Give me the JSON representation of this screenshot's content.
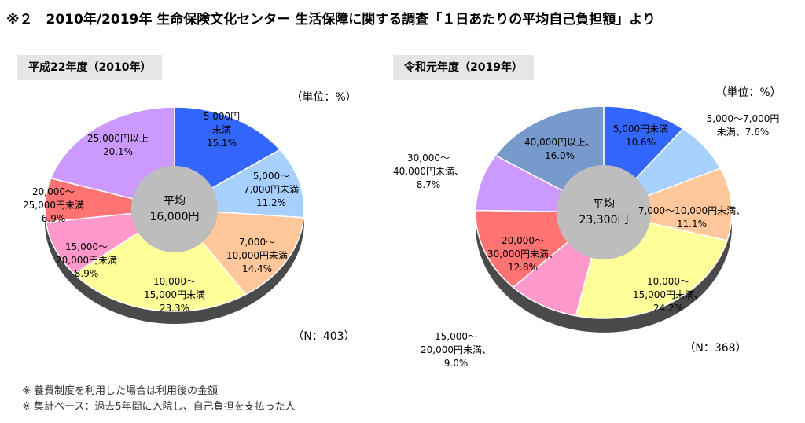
{
  "title": "※２　2010年/2019年 生命保険文化センター 生活保障に関する調査「１日あたりの平均自己負担額」より",
  "colors": {
    "blue": "#3366ff",
    "lightblue": "#a8d0ff",
    "peach": "#ffc79a",
    "yellow": "#ffff99",
    "pink": "#ff99cc",
    "red": "#ff7373",
    "lavender": "#cc99ff",
    "steel": "#7799cc",
    "center": "#bdbdbd",
    "depth": "#4a4a4a"
  },
  "notes": [
    "※ 養費制度を利用した場合は利用後の金額",
    "※ 集計ベース：過去5年間に入院し、自己負担を支払った人"
  ],
  "chart_data": [
    {
      "type": "pie",
      "title": "平成22年度（2010年）",
      "unit_label": "（単位：%）",
      "n_label": "（N：403）",
      "center_label": [
        "平均",
        "16,000円"
      ],
      "slices": [
        {
          "label": "5,000円未満",
          "value": 15.1,
          "color": "blue",
          "text": [
            "5,000円",
            "未満",
            "15.1%"
          ]
        },
        {
          "label": "5,000～7,000円未満",
          "value": 11.2,
          "color": "lightblue",
          "text": [
            "5,000～",
            "7,000円未満",
            "11.2%"
          ]
        },
        {
          "label": "7,000～10,000円未満",
          "value": 14.4,
          "color": "peach",
          "text": [
            "7,000～",
            "10,000円未満",
            "14.4%"
          ]
        },
        {
          "label": "10,000～15,000円未満",
          "value": 23.3,
          "color": "yellow",
          "text": [
            "10,000～",
            "15,000円未満",
            "23.3%"
          ]
        },
        {
          "label": "15,000～20,000円未満",
          "value": 8.9,
          "color": "pink",
          "text": [
            "15,000～",
            "20,000円未満",
            "8.9%"
          ]
        },
        {
          "label": "20,000～25,000円未満",
          "value": 6.9,
          "color": "red",
          "text": [
            "20,000～",
            "25,000円未満",
            "6.9%"
          ]
        },
        {
          "label": "25,000円以上",
          "value": 20.1,
          "color": "lavender",
          "text": [
            "25,000円以上",
            "20.1%"
          ]
        }
      ]
    },
    {
      "type": "pie",
      "title": "令和元年度（2019年）",
      "unit_label": "（単位：%）",
      "n_label": "（N：368）",
      "center_label": [
        "平均",
        "23,300円"
      ],
      "slices": [
        {
          "label": "5,000円未満",
          "value": 10.6,
          "color": "blue",
          "text": [
            "5,000円未満",
            "10.6%"
          ]
        },
        {
          "label": "5,000～7,000円未満",
          "value": 7.6,
          "color": "lightblue",
          "text": [
            "5,000～7,000円",
            "未満、7.6%"
          ]
        },
        {
          "label": "7,000～10,000円未満",
          "value": 11.1,
          "color": "peach",
          "text": [
            "7,000～10,000円未満、",
            "11.1%"
          ]
        },
        {
          "label": "10,000～15,000円未満",
          "value": 24.2,
          "color": "yellow",
          "text": [
            "10,000～",
            "15,000円未満、",
            "24.2%"
          ]
        },
        {
          "label": "15,000～20,000円未満",
          "value": 9.0,
          "color": "pink",
          "text": [
            "15,000～",
            "20,000円未満、",
            "9.0%"
          ]
        },
        {
          "label": "20,000～30,000円未満",
          "value": 12.8,
          "color": "red",
          "text": [
            "20,000～",
            "30,000円未満、",
            "12.8%"
          ]
        },
        {
          "label": "30,000～40,000円未満",
          "value": 8.7,
          "color": "lavender",
          "text": [
            "30,000～",
            "40,000円未満、",
            "8.7%"
          ]
        },
        {
          "label": "40,000円以上",
          "value": 16.0,
          "color": "steel",
          "text": [
            "40,000円以上、",
            "16.0%"
          ]
        }
      ]
    }
  ]
}
